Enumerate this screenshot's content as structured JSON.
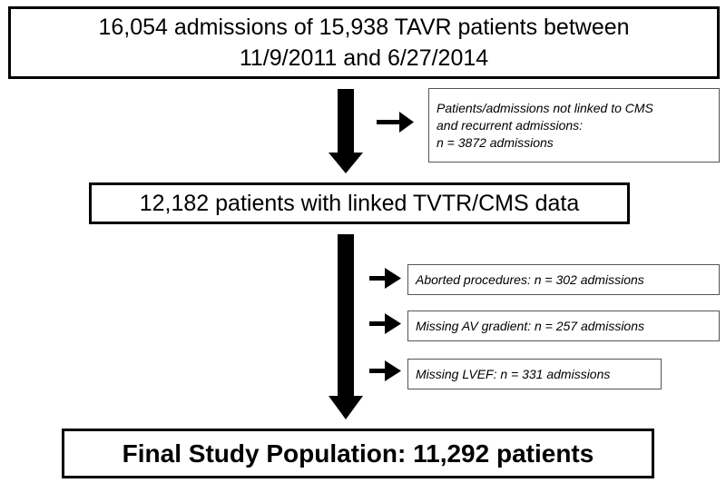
{
  "flowchart": {
    "step1": {
      "line1": "16,054 admissions of 15,938 TAVR patients between",
      "line2": "11/9/2011 and 6/27/2014"
    },
    "exclusion1": {
      "line1": "Patients/admissions not linked to CMS",
      "line2": "and recurrent admissions:",
      "line3": "n = 3872 admissions"
    },
    "step2": {
      "label": "12,182 patients with linked TVTR/CMS data"
    },
    "exclusions2": [
      {
        "label": "Aborted procedures: n = 302 admissions"
      },
      {
        "label": "Missing AV gradient: n = 257 admissions"
      },
      {
        "label": "Missing LVEF: n = 331 admissions"
      }
    ],
    "final": {
      "label": "Final Study Population: 11,292 patients"
    }
  }
}
